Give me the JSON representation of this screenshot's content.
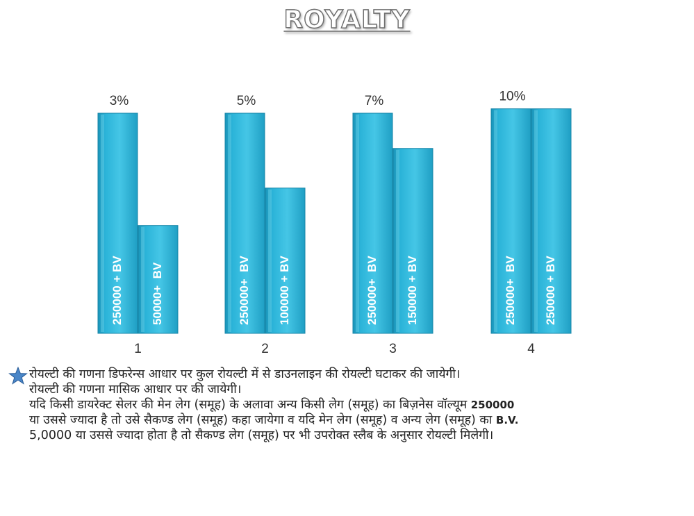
{
  "title": "ROYALTY",
  "chart_data": {
    "type": "bar",
    "categories": [
      "1",
      "2",
      "3",
      "4"
    ],
    "percent_labels": [
      "3%",
      "5%",
      "7%",
      "10%"
    ],
    "groups": [
      {
        "category": "1",
        "percent": "3%",
        "bars": [
          {
            "label": "250000 + BV",
            "level": 1.0
          },
          {
            "label": "50000+  BV",
            "level": 0.49
          }
        ]
      },
      {
        "category": "2",
        "percent": "5%",
        "bars": [
          {
            "label": "250000+  BV",
            "level": 1.0
          },
          {
            "label": "100000 + BV",
            "level": 0.66
          }
        ]
      },
      {
        "category": "3",
        "percent": "7%",
        "bars": [
          {
            "label": "250000+  BV",
            "level": 1.0
          },
          {
            "label": "150000 + BV",
            "level": 0.84
          }
        ]
      },
      {
        "category": "4",
        "percent": "10%",
        "bars": [
          {
            "label": "250000+  BV",
            "level": 1.02
          },
          {
            "label": "250000 + BV",
            "level": 1.02
          }
        ]
      }
    ],
    "bar_color": "#2ab0d4"
  },
  "notes": {
    "line1": "रोयल्टी की गणना डिफरेन्स आधार पर कुल रोयल्टी में से डाउनलाइन  की रोयल्टी घटाकर की जायेगी।",
    "line2": "रोयल्टी की गणना मासिक आधार पर की जायेगी।",
    "line3_text": "यदि किसी डायरेक्ट सेलर की मेन लेग (समूह) के अलावा अन्य किसी लेग (समूह) का बिज़नेस वॉल्यूम ",
    "line3_bold": "250000",
    "line4_text": "या उससे ज्यादा है तो उसे सैकण्ड लेग (समूह) कहा जायेगा व यदि मेन लेग (समूह) व अन्य  लेग (समूह) का ",
    "line4_bold": "B.V.",
    "line5": "5,0000  या उससे ज्यादा होता है तो सैकण्ड लेग (समूह) पर भी उपरोक्त स्लैब के अनुसार रोयल्टी मिलेगी।",
    "star_icon": "star-icon"
  }
}
